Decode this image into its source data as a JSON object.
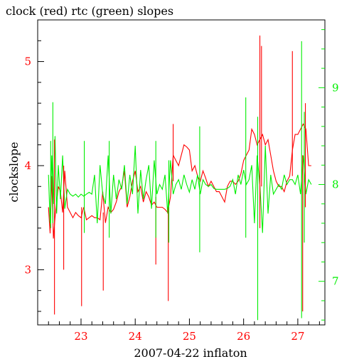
{
  "chart_data": {
    "type": "line",
    "title": "clock (red) rtc (green) slopes",
    "xlabel": "2007-04-22 inflaton",
    "ylabel": "clockslope",
    "xlim": [
      22.2,
      27.5
    ],
    "x_ticks": [
      23,
      24,
      25,
      26,
      27
    ],
    "left_axis": {
      "ylim": [
        2.47,
        5.4
      ],
      "ticks": [
        3,
        4,
        5
      ]
    },
    "right_axis": {
      "ylim": [
        6.55,
        9.7
      ],
      "ticks": [
        7,
        8,
        9
      ]
    },
    "colors": {
      "clock": "#ff0000",
      "rtc": "#00ee00",
      "axis": "#000000",
      "left_ticks": "#ff0000",
      "right_ticks": "#00ee00"
    },
    "series": [
      {
        "axis": "left",
        "x": [
          22.4,
          22.43,
          22.46,
          22.49,
          22.52,
          22.55,
          22.58,
          22.62,
          22.66,
          22.7,
          22.75,
          22.8,
          22.85,
          22.9,
          22.95,
          23.0,
          23.05,
          23.1,
          23.15,
          23.2,
          23.25,
          23.3,
          23.35,
          23.4,
          23.45,
          23.5,
          23.55,
          23.6,
          23.65,
          23.7,
          23.75,
          23.8,
          23.85,
          23.9,
          23.95,
          24.0,
          24.05,
          24.1,
          24.15,
          24.2,
          24.25,
          24.3,
          24.35,
          24.4,
          24.45,
          24.5,
          24.55,
          24.6,
          24.65,
          24.7,
          24.75,
          24.8,
          24.85,
          24.9,
          24.95,
          25.0,
          25.05,
          25.1,
          25.15,
          25.2,
          25.25,
          25.3,
          25.35,
          25.4,
          25.45,
          25.5,
          25.55,
          25.6,
          25.65,
          25.7,
          25.75,
          25.8,
          25.85,
          25.9,
          25.95,
          26.0,
          26.05,
          26.1,
          26.15,
          26.2,
          26.25,
          26.3,
          26.35,
          26.4,
          26.45,
          26.5,
          26.55,
          26.6,
          26.65,
          26.7,
          26.75,
          26.8,
          26.85,
          26.9,
          26.95,
          27.0,
          27.05,
          27.1,
          27.15,
          27.2,
          27.25
        ],
        "values": [
          3.6,
          3.35,
          3.9,
          3.3,
          3.5,
          3.65,
          3.8,
          3.75,
          3.55,
          3.95,
          3.6,
          3.55,
          3.5,
          3.55,
          3.52,
          3.5,
          3.6,
          3.48,
          3.5,
          3.52,
          3.5,
          3.5,
          3.48,
          3.75,
          3.45,
          3.6,
          3.55,
          3.58,
          3.65,
          3.75,
          3.8,
          3.95,
          3.6,
          3.7,
          3.85,
          3.95,
          3.75,
          3.8,
          3.65,
          3.75,
          3.7,
          3.62,
          3.65,
          3.6,
          3.6,
          3.6,
          3.58,
          3.55,
          3.7,
          4.1,
          4.05,
          4.0,
          4.1,
          4.2,
          4.18,
          4.15,
          3.95,
          4.0,
          3.9,
          3.85,
          3.95,
          3.88,
          3.8,
          3.85,
          3.8,
          3.75,
          3.75,
          3.7,
          3.65,
          3.8,
          3.85,
          3.85,
          3.82,
          3.85,
          3.92,
          4.05,
          4.1,
          4.15,
          4.35,
          4.3,
          4.2,
          4.25,
          4.3,
          4.2,
          4.25,
          4.1,
          3.95,
          3.85,
          3.8,
          3.8,
          3.75,
          3.85,
          3.9,
          4.15,
          4.3,
          4.3,
          4.35,
          4.4,
          4.35,
          4.0,
          4.0
        ]
      },
      {
        "axis": "right",
        "x": [
          22.4,
          22.43,
          22.46,
          22.49,
          22.52,
          22.55,
          22.58,
          22.62,
          22.66,
          22.7,
          22.75,
          22.8,
          22.85,
          22.9,
          22.95,
          23.0,
          23.05,
          23.1,
          23.15,
          23.2,
          23.25,
          23.3,
          23.35,
          23.4,
          23.45,
          23.5,
          23.55,
          23.6,
          23.65,
          23.7,
          23.75,
          23.8,
          23.85,
          23.9,
          23.95,
          24.0,
          24.05,
          24.1,
          24.15,
          24.2,
          24.25,
          24.3,
          24.35,
          24.4,
          24.45,
          24.5,
          24.55,
          24.6,
          24.65,
          24.7,
          24.75,
          24.8,
          24.85,
          24.9,
          24.95,
          25.0,
          25.05,
          25.1,
          25.15,
          25.2,
          25.25,
          25.3,
          25.35,
          25.4,
          25.45,
          25.5,
          25.55,
          25.6,
          25.65,
          25.7,
          25.75,
          25.8,
          25.85,
          25.9,
          25.95,
          26.0,
          26.05,
          26.1,
          26.15,
          26.2,
          26.25,
          26.3,
          26.35,
          26.4,
          26.45,
          26.5,
          26.55,
          26.6,
          26.65,
          26.7,
          26.75,
          26.8,
          26.85,
          26.9,
          26.95,
          27.0,
          27.05,
          27.1,
          27.15,
          27.2,
          27.25
        ],
        "values": [
          8.1,
          7.6,
          8.3,
          7.8,
          8.5,
          7.7,
          8.2,
          7.85,
          8.3,
          7.75,
          7.95,
          7.9,
          7.88,
          7.9,
          7.87,
          7.9,
          7.88,
          7.9,
          7.92,
          7.9,
          8.1,
          7.6,
          8.2,
          7.9,
          7.8,
          8.3,
          7.7,
          8.1,
          7.85,
          8.05,
          7.95,
          8.2,
          7.8,
          8.1,
          7.9,
          8.4,
          7.7,
          8.15,
          7.85,
          8.05,
          8.2,
          7.75,
          8.25,
          7.9,
          8.0,
          7.95,
          8.1,
          7.7,
          8.25,
          7.9,
          8.0,
          8.05,
          7.95,
          8.1,
          8.0,
          7.92,
          8.05,
          7.95,
          8.1,
          7.9,
          8.05,
          8.0,
          7.98,
          8.0,
          7.96,
          7.95,
          7.95,
          7.95,
          7.95,
          7.96,
          7.98,
          8.05,
          7.9,
          8.1,
          8.0,
          8.15,
          8.0,
          8.05,
          8.2,
          7.6,
          8.3,
          8.0,
          7.5,
          8.4,
          7.7,
          8.1,
          7.9,
          7.95,
          8.0,
          7.95,
          8.1,
          8.0,
          8.05,
          8.05,
          8.0,
          8.1,
          7.9,
          8.3,
          7.9,
          8.05,
          8.0
        ]
      }
    ],
    "spikes": [
      {
        "series": 0,
        "x": 22.51,
        "values": [
          2.57,
          4.25
        ]
      },
      {
        "series": 0,
        "x": 22.68,
        "values": [
          3.0,
          4.0
        ]
      },
      {
        "series": 0,
        "x": 23.01,
        "values": [
          2.65,
          3.6
        ]
      },
      {
        "series": 0,
        "x": 23.41,
        "values": [
          2.8,
          3.55
        ]
      },
      {
        "series": 0,
        "x": 24.38,
        "values": [
          3.05,
          3.7
        ]
      },
      {
        "series": 0,
        "x": 24.61,
        "values": [
          2.7,
          3.6
        ]
      },
      {
        "series": 0,
        "x": 24.7,
        "values": [
          3.85,
          4.4
        ]
      },
      {
        "series": 0,
        "x": 26.3,
        "values": [
          3.4,
          5.25
        ]
      },
      {
        "series": 0,
        "x": 26.33,
        "values": [
          3.8,
          5.15
        ]
      },
      {
        "series": 0,
        "x": 26.9,
        "values": [
          3.9,
          5.1
        ]
      },
      {
        "series": 0,
        "x": 27.09,
        "values": [
          2.6,
          4.1
        ]
      },
      {
        "series": 0,
        "x": 27.14,
        "values": [
          3.6,
          4.6
        ]
      },
      {
        "series": 1,
        "x": 22.44,
        "values": [
          7.55,
          8.45
        ]
      },
      {
        "series": 1,
        "x": 22.48,
        "values": [
          7.6,
          8.85
        ]
      },
      {
        "series": 1,
        "x": 23.06,
        "values": [
          7.5,
          8.45
        ]
      },
      {
        "series": 1,
        "x": 23.52,
        "values": [
          7.45,
          8.45
        ]
      },
      {
        "series": 1,
        "x": 24.38,
        "values": [
          7.45,
          8.45
        ]
      },
      {
        "series": 1,
        "x": 24.62,
        "values": [
          7.4,
          8.25
        ]
      },
      {
        "series": 1,
        "x": 25.19,
        "values": [
          7.3,
          8.6
        ]
      },
      {
        "series": 1,
        "x": 26.04,
        "values": [
          7.45,
          8.9
        ]
      },
      {
        "series": 1,
        "x": 26.26,
        "values": [
          6.6,
          8.7
        ]
      },
      {
        "series": 1,
        "x": 27.07,
        "values": [
          6.62,
          9.48
        ]
      },
      {
        "series": 1,
        "x": 27.12,
        "values": [
          7.4,
          8.75
        ]
      }
    ]
  }
}
